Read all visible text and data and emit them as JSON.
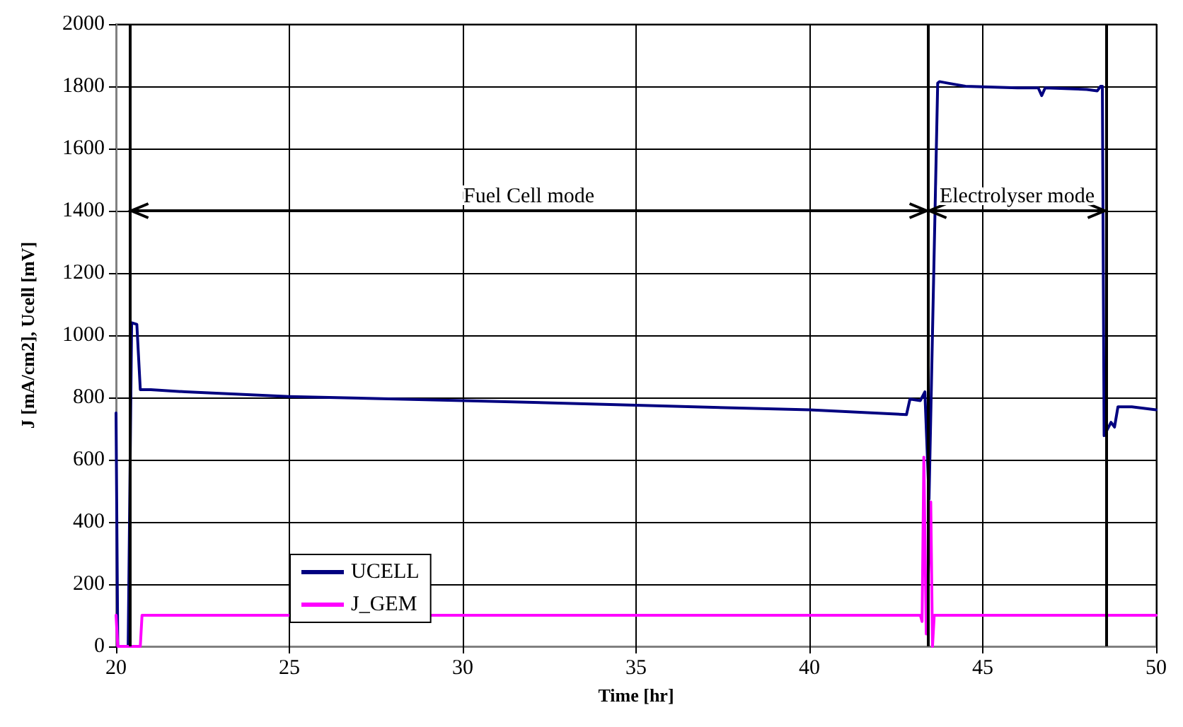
{
  "chart_data": {
    "type": "line",
    "xlabel": "Time [hr]",
    "ylabel": "J [mA/cm2], Ucell [mV]",
    "xlim": [
      20,
      50
    ],
    "xticks": [
      20,
      25,
      30,
      35,
      40,
      45,
      50
    ],
    "ylim": [
      0,
      2000
    ],
    "yticks": [
      0,
      200,
      400,
      600,
      800,
      1000,
      1200,
      1400,
      1600,
      1800,
      2000
    ],
    "grid": true,
    "legend": "bottom left",
    "marker": "none",
    "line_style": "solid",
    "series": [
      {
        "name": "UCELL",
        "color": "#000080",
        "x": [
          20,
          20.05,
          20.35,
          20.45,
          20.6,
          20.7,
          21,
          22,
          25,
          30,
          35,
          40,
          42.8,
          42.9,
          43.2,
          43.33,
          43.45,
          43.7,
          43.75,
          44,
          44.5,
          46,
          46.6,
          46.7,
          46.8,
          48,
          48.3,
          48.4,
          48.45,
          48.5,
          48.7,
          48.8,
          48.9,
          49.3,
          50
        ],
        "values": [
          750,
          0,
          0,
          1040,
          1035,
          825,
          825,
          818,
          803,
          790,
          775,
          760,
          745,
          795,
          790,
          818,
          473,
          1810,
          1815,
          1810,
          1800,
          1795,
          1795,
          1770,
          1795,
          1790,
          1785,
          1800,
          1800,
          677,
          720,
          705,
          770,
          770,
          760
        ]
      },
      {
        "name": "J_GEM",
        "color": "#ff00ff",
        "x": [
          20,
          20.05,
          20.7,
          20.75,
          43.2,
          43.25,
          43.3,
          43.37,
          43.5,
          43.55,
          43.6,
          50
        ],
        "values": [
          100,
          0,
          0,
          100,
          100,
          80,
          608,
          40,
          464,
          0,
          100,
          100
        ]
      }
    ],
    "ref_lines": [
      {
        "axis": "x",
        "value": 20.4,
        "color": "#000000"
      },
      {
        "axis": "x",
        "value": 43.42,
        "color": "#000000"
      },
      {
        "axis": "x",
        "value": 48.56,
        "color": "#000000"
      }
    ],
    "annotations": [
      "Fuel Cell mode",
      "Electrolyser mode"
    ]
  }
}
